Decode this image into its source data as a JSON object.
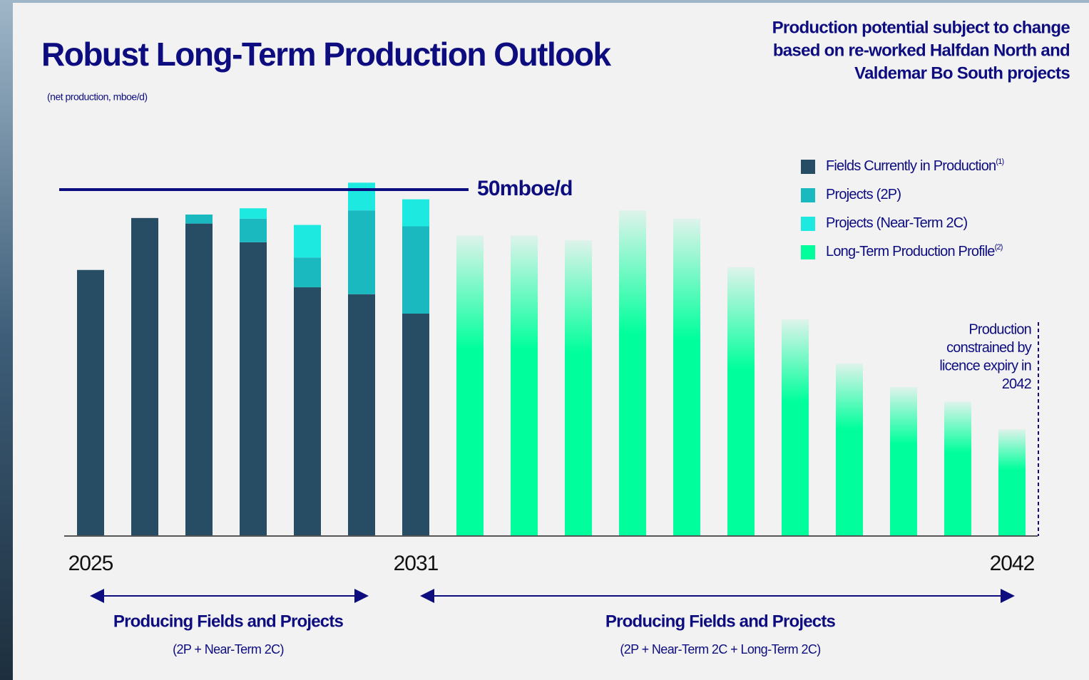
{
  "chart_data": {
    "type": "stacked_bar",
    "title": "Robust Long-Term Production Outlook",
    "subtitle": "(net production, mboe/d)",
    "note": [
      "Production potential subject to change",
      "based on re-worked Halfdan North and",
      "Valdemar Bo South projects"
    ],
    "categories": [
      "2025",
      null,
      null,
      null,
      null,
      null,
      "2031",
      null,
      null,
      null,
      null,
      null,
      null,
      null,
      null,
      null,
      null,
      "2042"
    ],
    "series": [
      {
        "name": "Fields Currently in Production",
        "footnote": "(1)",
        "color": "#264d63",
        "values": [
          38.4,
          45.9,
          45.1,
          42.4,
          35.9,
          34.9,
          32.1,
          null,
          null,
          null,
          null,
          null,
          null,
          null,
          null,
          null,
          null,
          null
        ]
      },
      {
        "name": "Projects (2P)",
        "color": "#1ab8bf",
        "values": [
          null,
          null,
          1.3,
          3.4,
          4.3,
          12.1,
          12.6,
          null,
          null,
          null,
          null,
          null,
          null,
          null,
          null,
          null,
          null,
          null
        ]
      },
      {
        "name": "Projects (Near-Term 2C)",
        "color": "#1de9e0",
        "values": [
          null,
          null,
          null,
          1.5,
          4.7,
          4.0,
          3.9,
          null,
          null,
          null,
          null,
          null,
          null,
          null,
          null,
          null,
          null,
          null
        ]
      },
      {
        "name": "Long-Term Production Profile",
        "footnote": "(2)",
        "color": "#00ff9c",
        "gradient": true,
        "values": [
          null,
          null,
          null,
          null,
          null,
          null,
          null,
          43.4,
          43.4,
          42.7,
          47.0,
          45.8,
          38.8,
          31.3,
          24.9,
          21.5,
          19.4,
          15.4
        ]
      }
    ],
    "ylim": [
      0,
      60
    ],
    "reference_line": {
      "value": 50,
      "label": "50mboe/d",
      "color": "#0d0d80"
    },
    "annotation": [
      "Production",
      "constrained by",
      "licence expiry in",
      "2042"
    ],
    "periods": [
      {
        "title": "Producing Fields and Projects",
        "subtitle": "(2P + Near-Term 2C)"
      },
      {
        "title": "Producing Fields and Projects",
        "subtitle": "(2P + Near-Term 2C + Long-Term 2C)"
      }
    ]
  }
}
